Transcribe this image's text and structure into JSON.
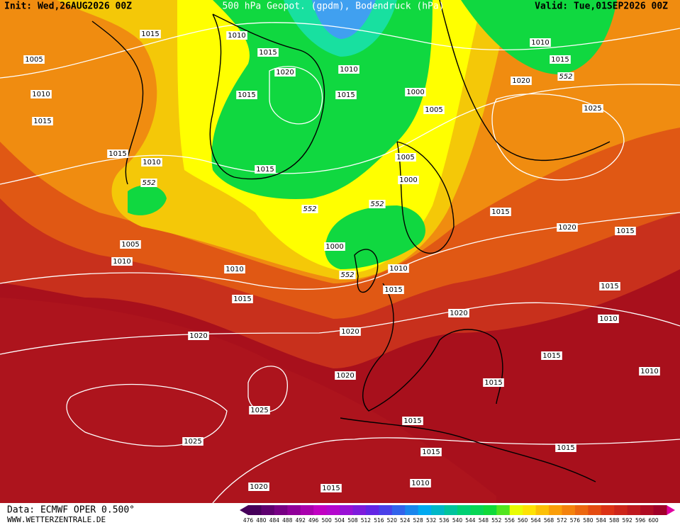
{
  "header": {
    "init": "Init: Wed,26AUG2026 00Z",
    "title": "500 hPa Geopot. (gpdm), Bodendruck (hPa)",
    "valid": "Valid: Tue,01SEP2026 00Z"
  },
  "isobar_labels": [
    "1015",
    "1010",
    "1015",
    "1005",
    "1010",
    "1015",
    "1020",
    "1010",
    "1015",
    "1015",
    "1000",
    "1010",
    "1015",
    "552",
    "1020",
    "1025",
    "1005",
    "1015",
    "1010",
    "1015",
    "1005",
    "552",
    "1000",
    "552",
    "552",
    "1015",
    "1020",
    "1015",
    "1005",
    "1000",
    "1010",
    "1010",
    "552",
    "1010",
    "1015",
    "1015",
    "1015",
    "1020",
    "1010",
    "1020",
    "1020",
    "1015",
    "1010",
    "1020",
    "1015",
    "1025",
    "1015",
    "1025",
    "1015",
    "1015",
    "1020",
    "1015",
    "1010"
  ],
  "legend": {
    "ticks": [
      476,
      480,
      484,
      488,
      492,
      496,
      500,
      504,
      508,
      512,
      516,
      520,
      524,
      528,
      532,
      536,
      540,
      544,
      548,
      552,
      556,
      560,
      564,
      568,
      572,
      576,
      580,
      584,
      588,
      592,
      596,
      600
    ]
  },
  "footer": {
    "source": "Data: ECMWF OPER 0.500°",
    "website": "WWW.WETTERZENTRALE.DE"
  }
}
